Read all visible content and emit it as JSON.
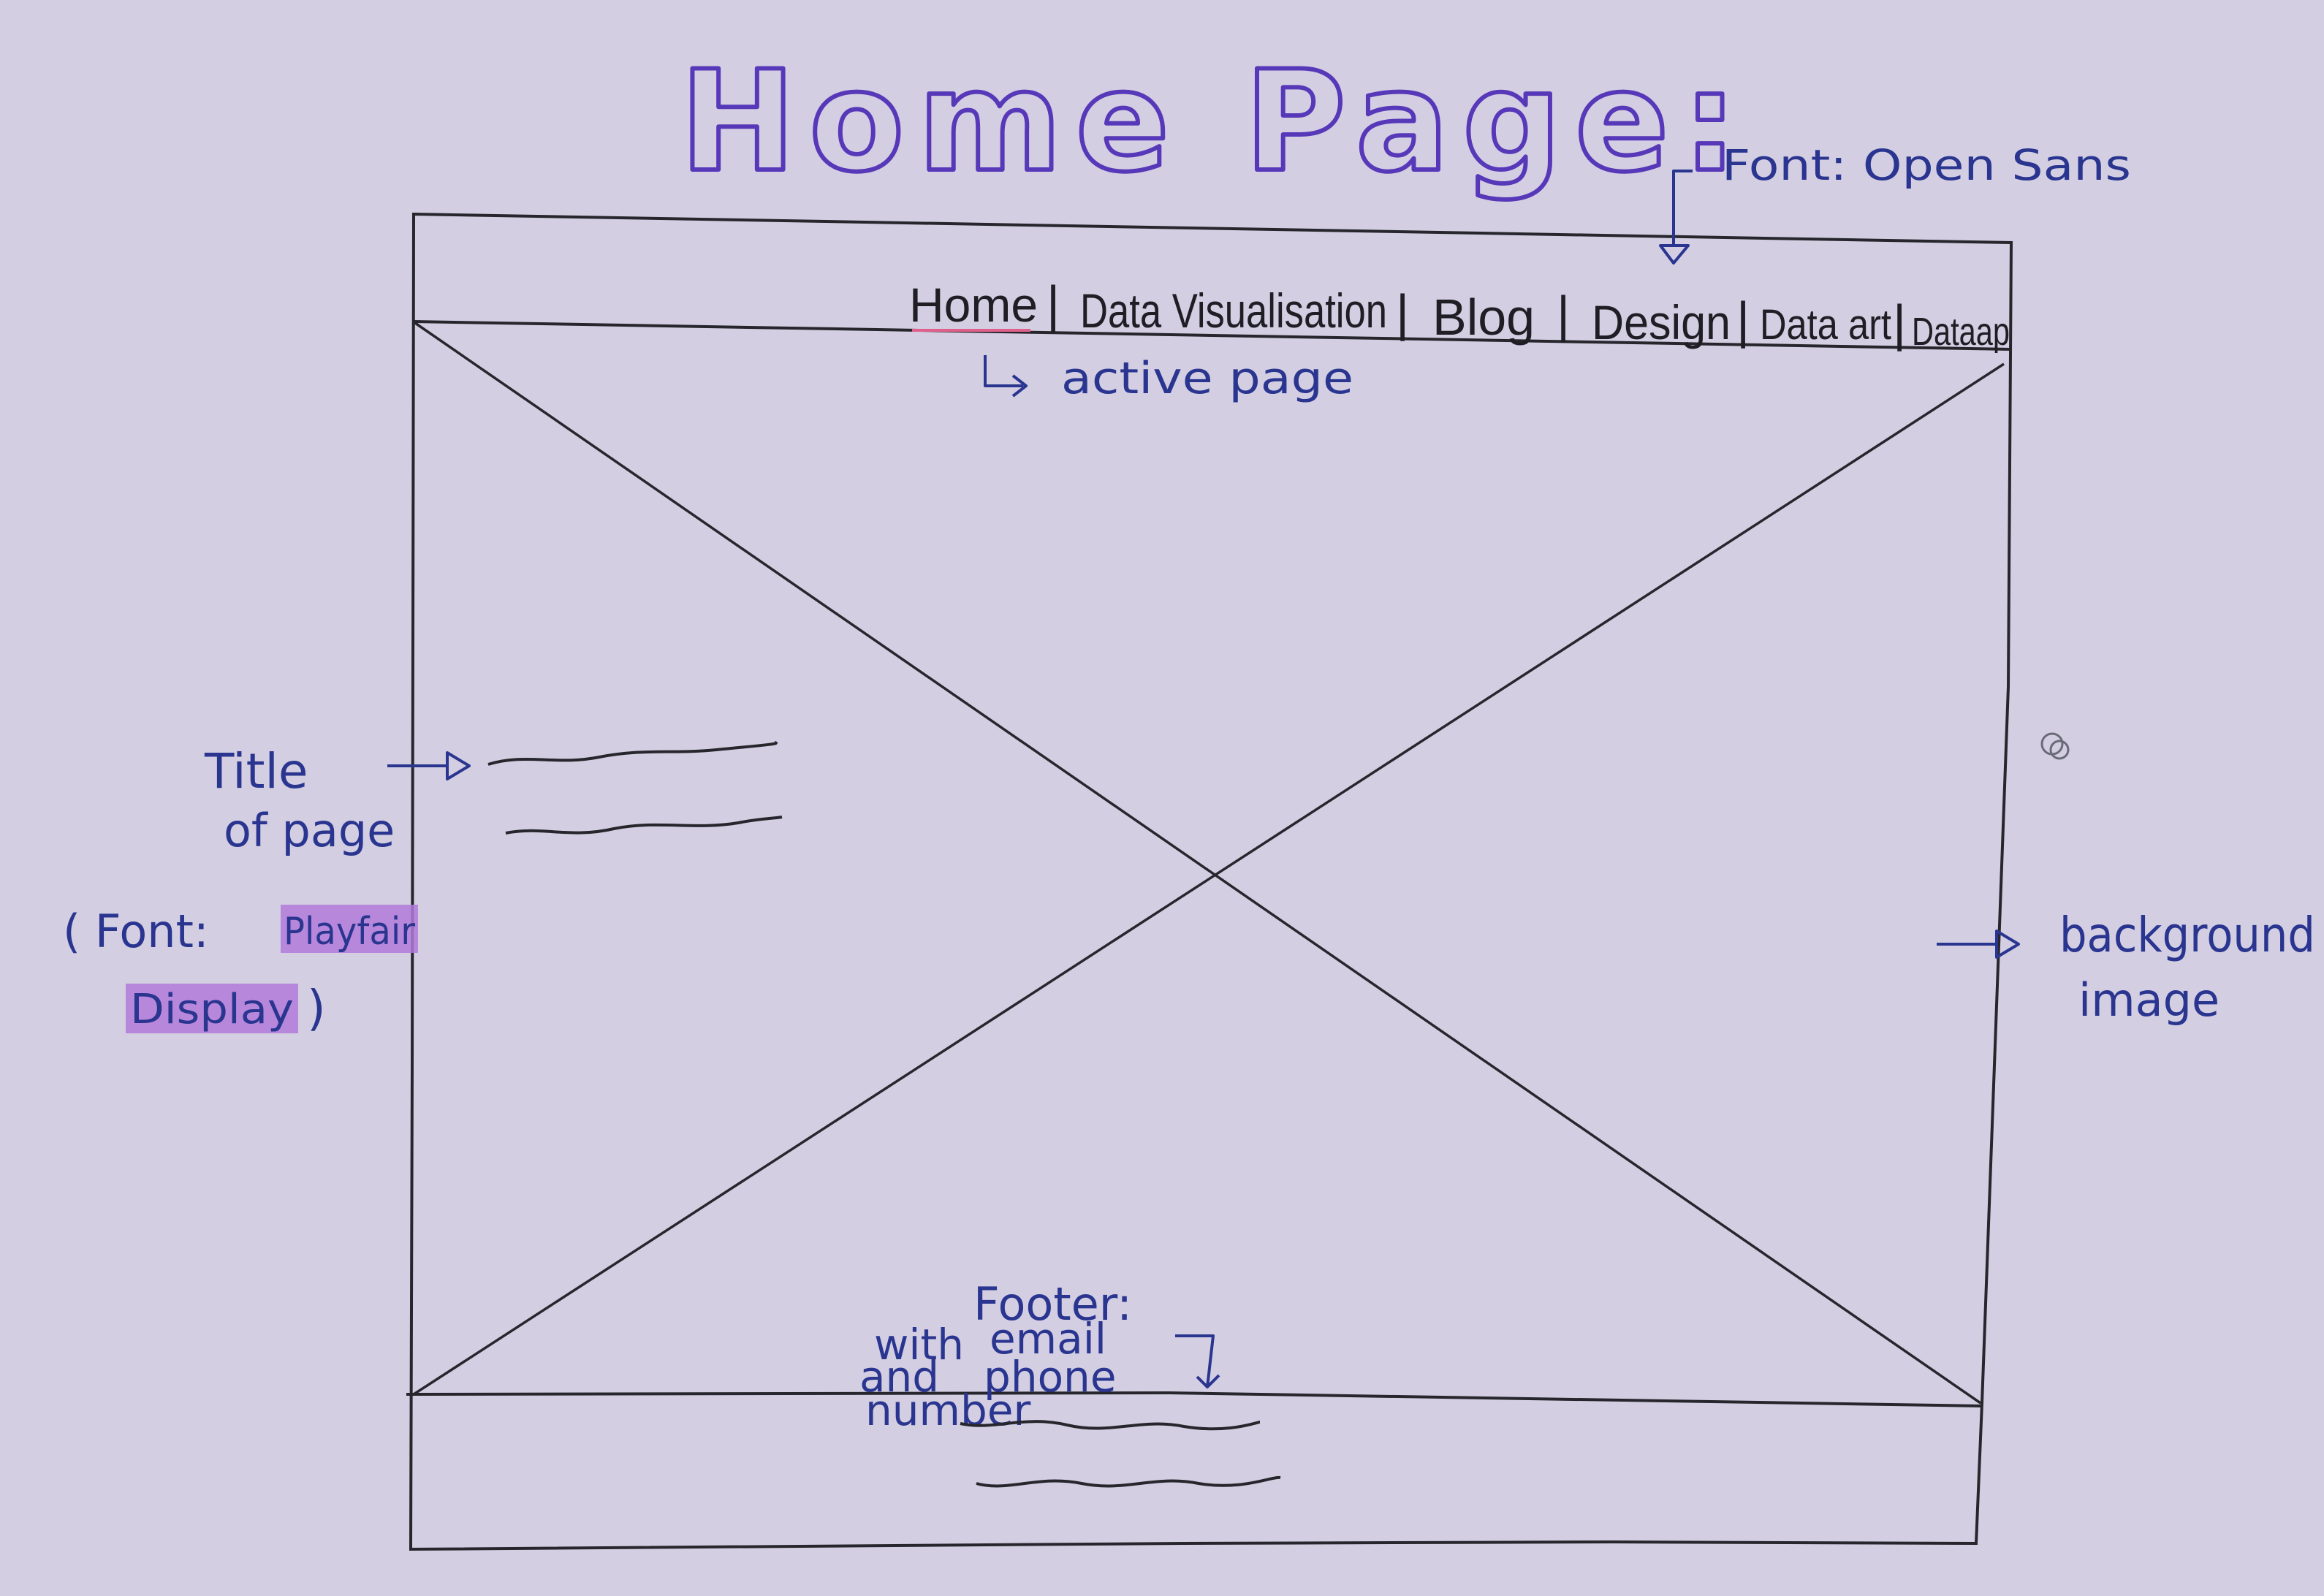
{
  "heading": "Home Page:",
  "nav": {
    "items": [
      "Home",
      "Data Visualisation",
      "Blog",
      "Design",
      "Data art",
      "Dataap"
    ],
    "separator": "|",
    "active_index": 0
  },
  "annotations": {
    "font_nav": "Font: Open Sans",
    "active_page": "active page",
    "title_line1": "Title",
    "title_line2": "of page",
    "title_font_open": "( Font:",
    "title_font_name1": "Playfair",
    "title_font_name2": "Display",
    "title_font_close": ")",
    "background_line1": "background",
    "background_line2": "image",
    "footer_heading": "Footer:",
    "footer_line1a": "with",
    "footer_line1b": "email",
    "footer_line2a": "and",
    "footer_line2b": "phone",
    "footer_line3": "number"
  },
  "colors": {
    "paper": "#d3cee2",
    "ink_pencil": "#26262c",
    "ink_blue": "#2a3590",
    "ink_purple": "#5638b8",
    "active_pink": "#e0608c",
    "highlight": "#b07ad8"
  }
}
